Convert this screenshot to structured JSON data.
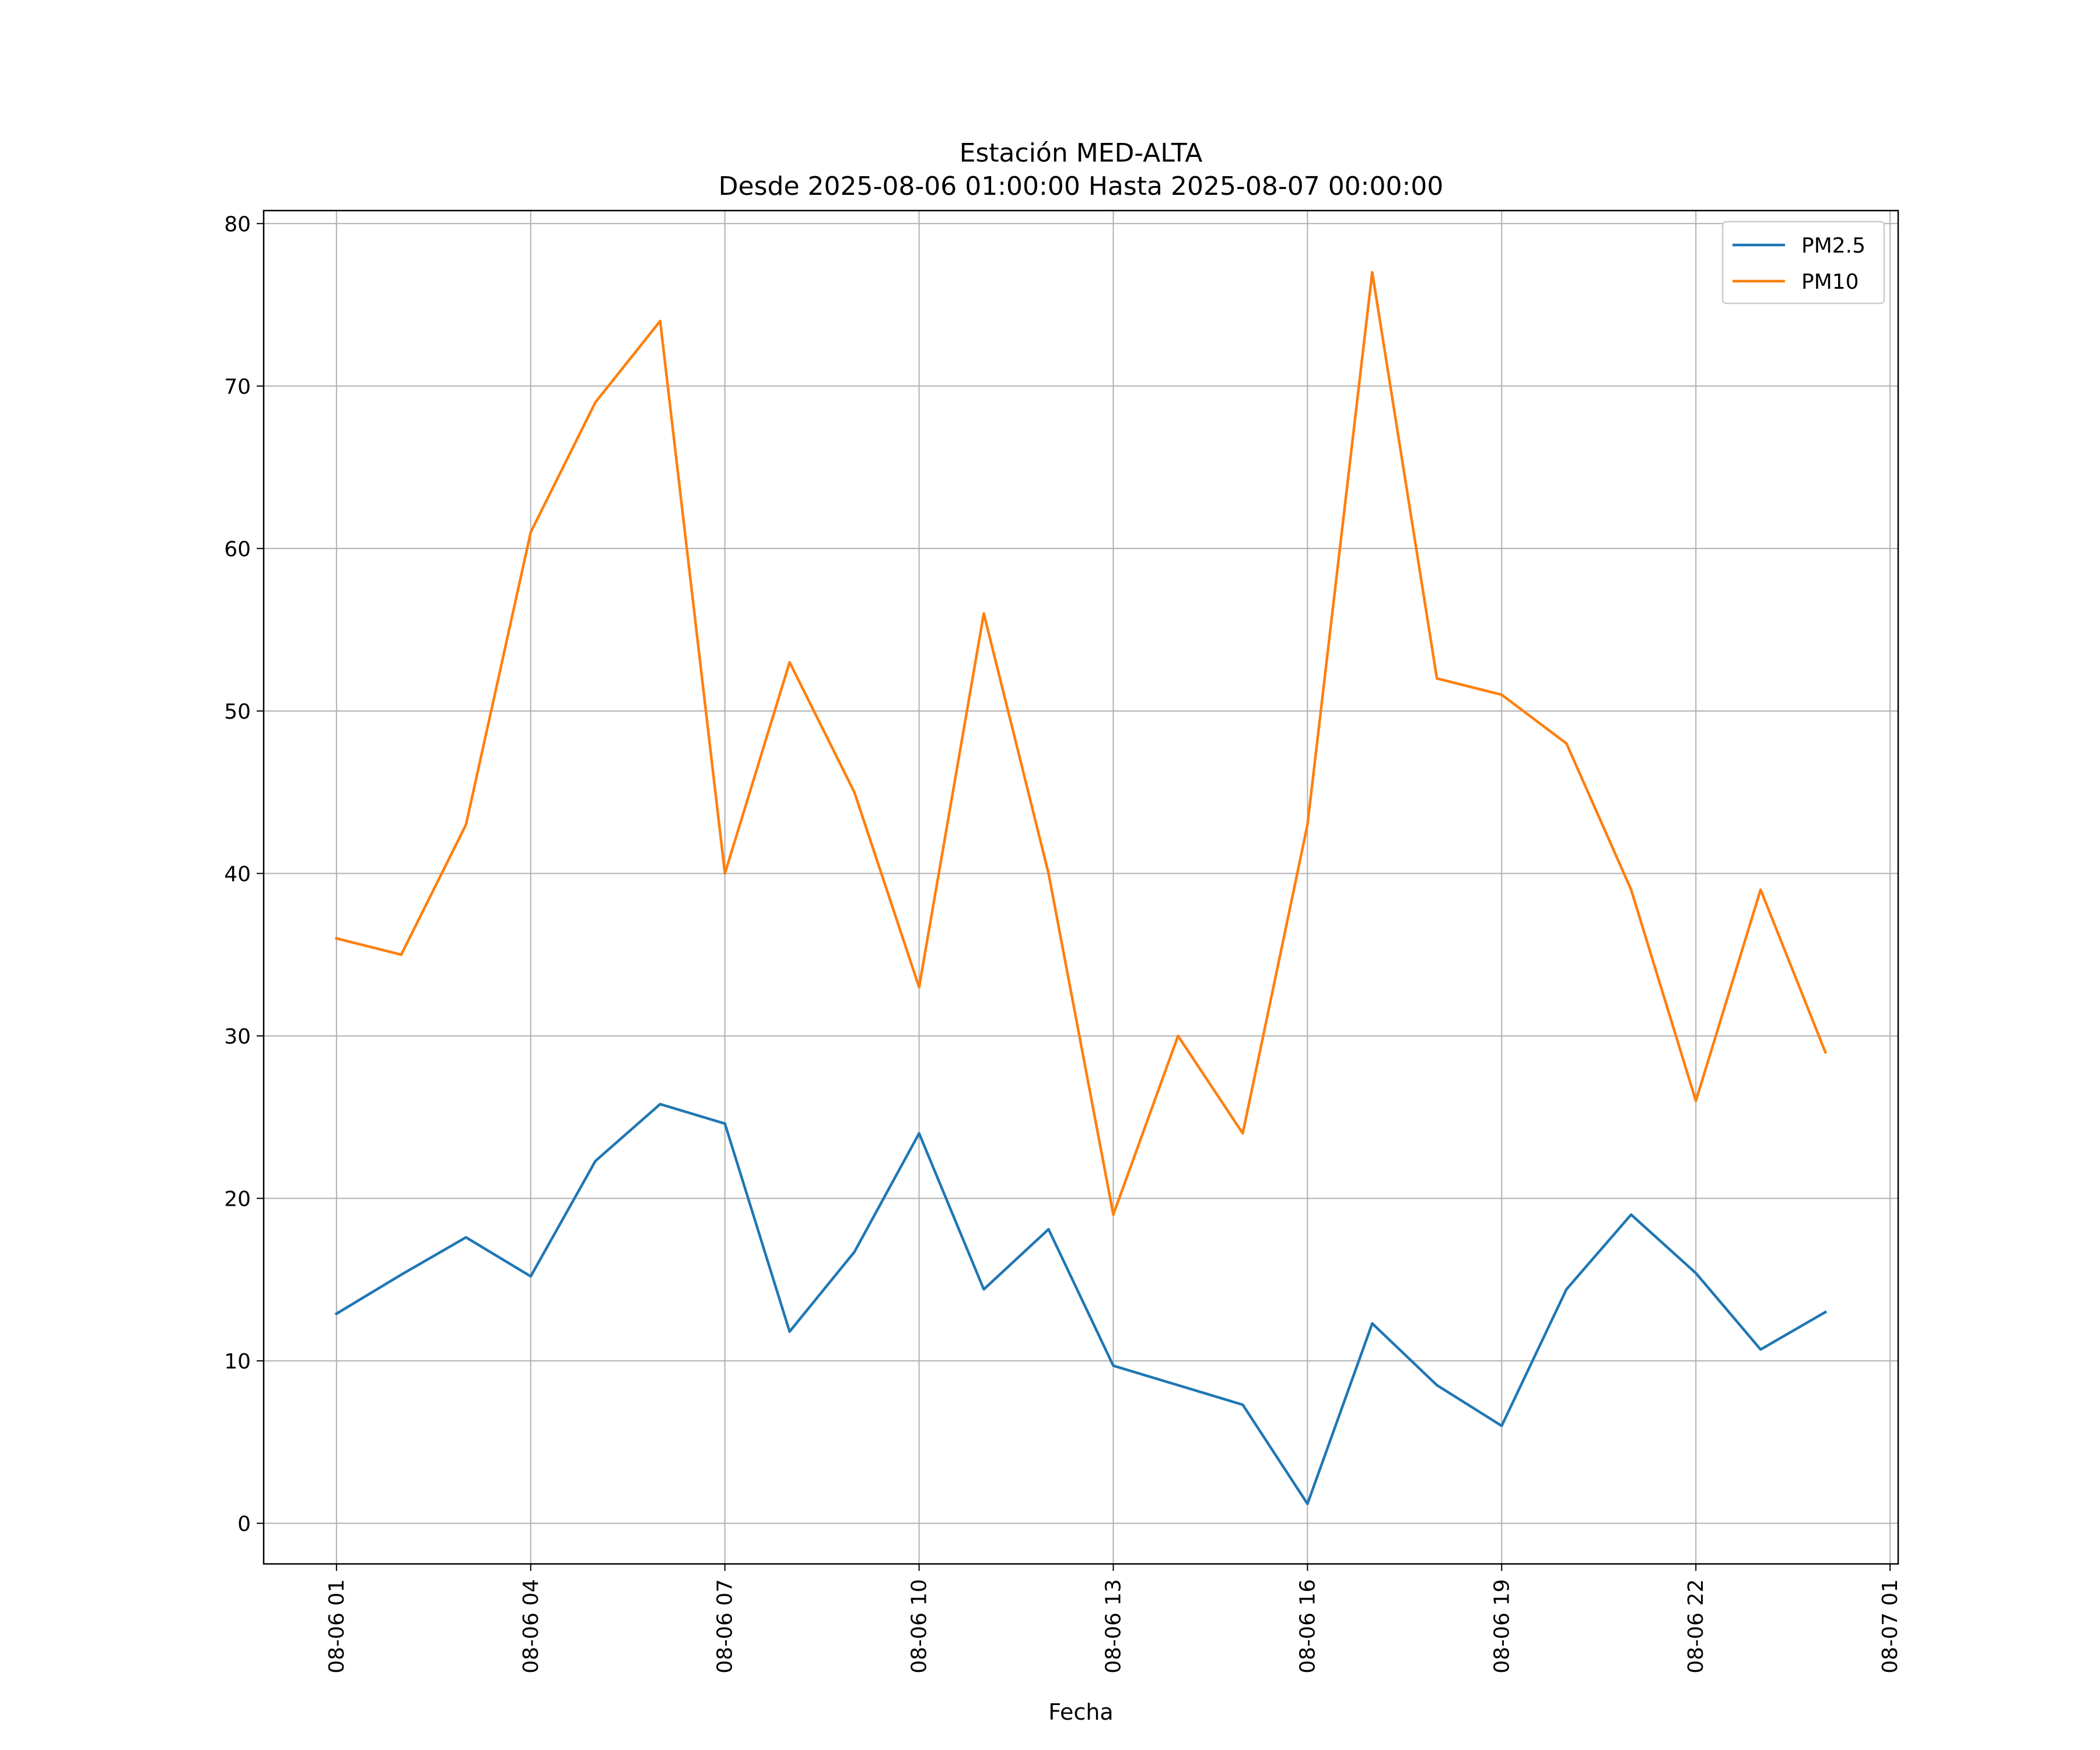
{
  "chart_data": {
    "type": "line",
    "title": "Estación MED-ALTA",
    "subtitle": "Desde 2025-08-06 01:00:00 Hasta 2025-08-07 00:00:00",
    "xlabel": "Fecha",
    "ylabel": "",
    "x": [
      "2025-08-06 01:00",
      "2025-08-06 02:00",
      "2025-08-06 03:00",
      "2025-08-06 04:00",
      "2025-08-06 05:00",
      "2025-08-06 06:00",
      "2025-08-06 07:00",
      "2025-08-06 08:00",
      "2025-08-06 09:00",
      "2025-08-06 10:00",
      "2025-08-06 11:00",
      "2025-08-06 12:00",
      "2025-08-06 13:00",
      "2025-08-06 14:00",
      "2025-08-06 15:00",
      "2025-08-06 16:00",
      "2025-08-06 17:00",
      "2025-08-06 18:00",
      "2025-08-06 19:00",
      "2025-08-06 20:00",
      "2025-08-06 21:00",
      "2025-08-06 22:00",
      "2025-08-06 23:00",
      "2025-08-07 00:00"
    ],
    "x_hours": [
      1,
      2,
      3,
      4,
      5,
      6,
      7,
      8,
      9,
      10,
      11,
      12,
      13,
      14,
      15,
      16,
      17,
      18,
      19,
      20,
      21,
      22,
      23,
      24
    ],
    "series": [
      {
        "name": "PM2.5",
        "color": "#1f77b4",
        "values": [
          12.9,
          15.3,
          17.6,
          15.2,
          22.3,
          25.8,
          24.6,
          11.8,
          16.7,
          24.0,
          14.4,
          18.1,
          9.7,
          8.5,
          7.3,
          1.2,
          12.3,
          8.5,
          6.0,
          14.4,
          19.0,
          15.4,
          10.7,
          13.0
        ]
      },
      {
        "name": "PM10",
        "color": "#ff7f0e",
        "values": [
          36,
          35,
          43,
          61,
          69,
          74,
          40,
          53,
          45,
          33,
          56,
          40,
          19,
          30,
          24,
          43,
          77,
          52,
          51,
          48,
          39,
          26,
          39,
          29
        ]
      }
    ],
    "xlim_hours": [
      -0.125,
      25.125
    ],
    "ylim": [
      -2.5,
      80.8
    ],
    "yticks": [
      0,
      10,
      20,
      30,
      40,
      50,
      60,
      70,
      80
    ],
    "xticks_hours": [
      1,
      4,
      7,
      10,
      13,
      16,
      19,
      22,
      25
    ],
    "xtick_labels": [
      "08-06 01",
      "08-06 04",
      "08-06 07",
      "08-06 10",
      "08-06 13",
      "08-06 16",
      "08-06 19",
      "08-06 22",
      "08-07 01"
    ],
    "grid": true,
    "legend_position": "top-right"
  }
}
